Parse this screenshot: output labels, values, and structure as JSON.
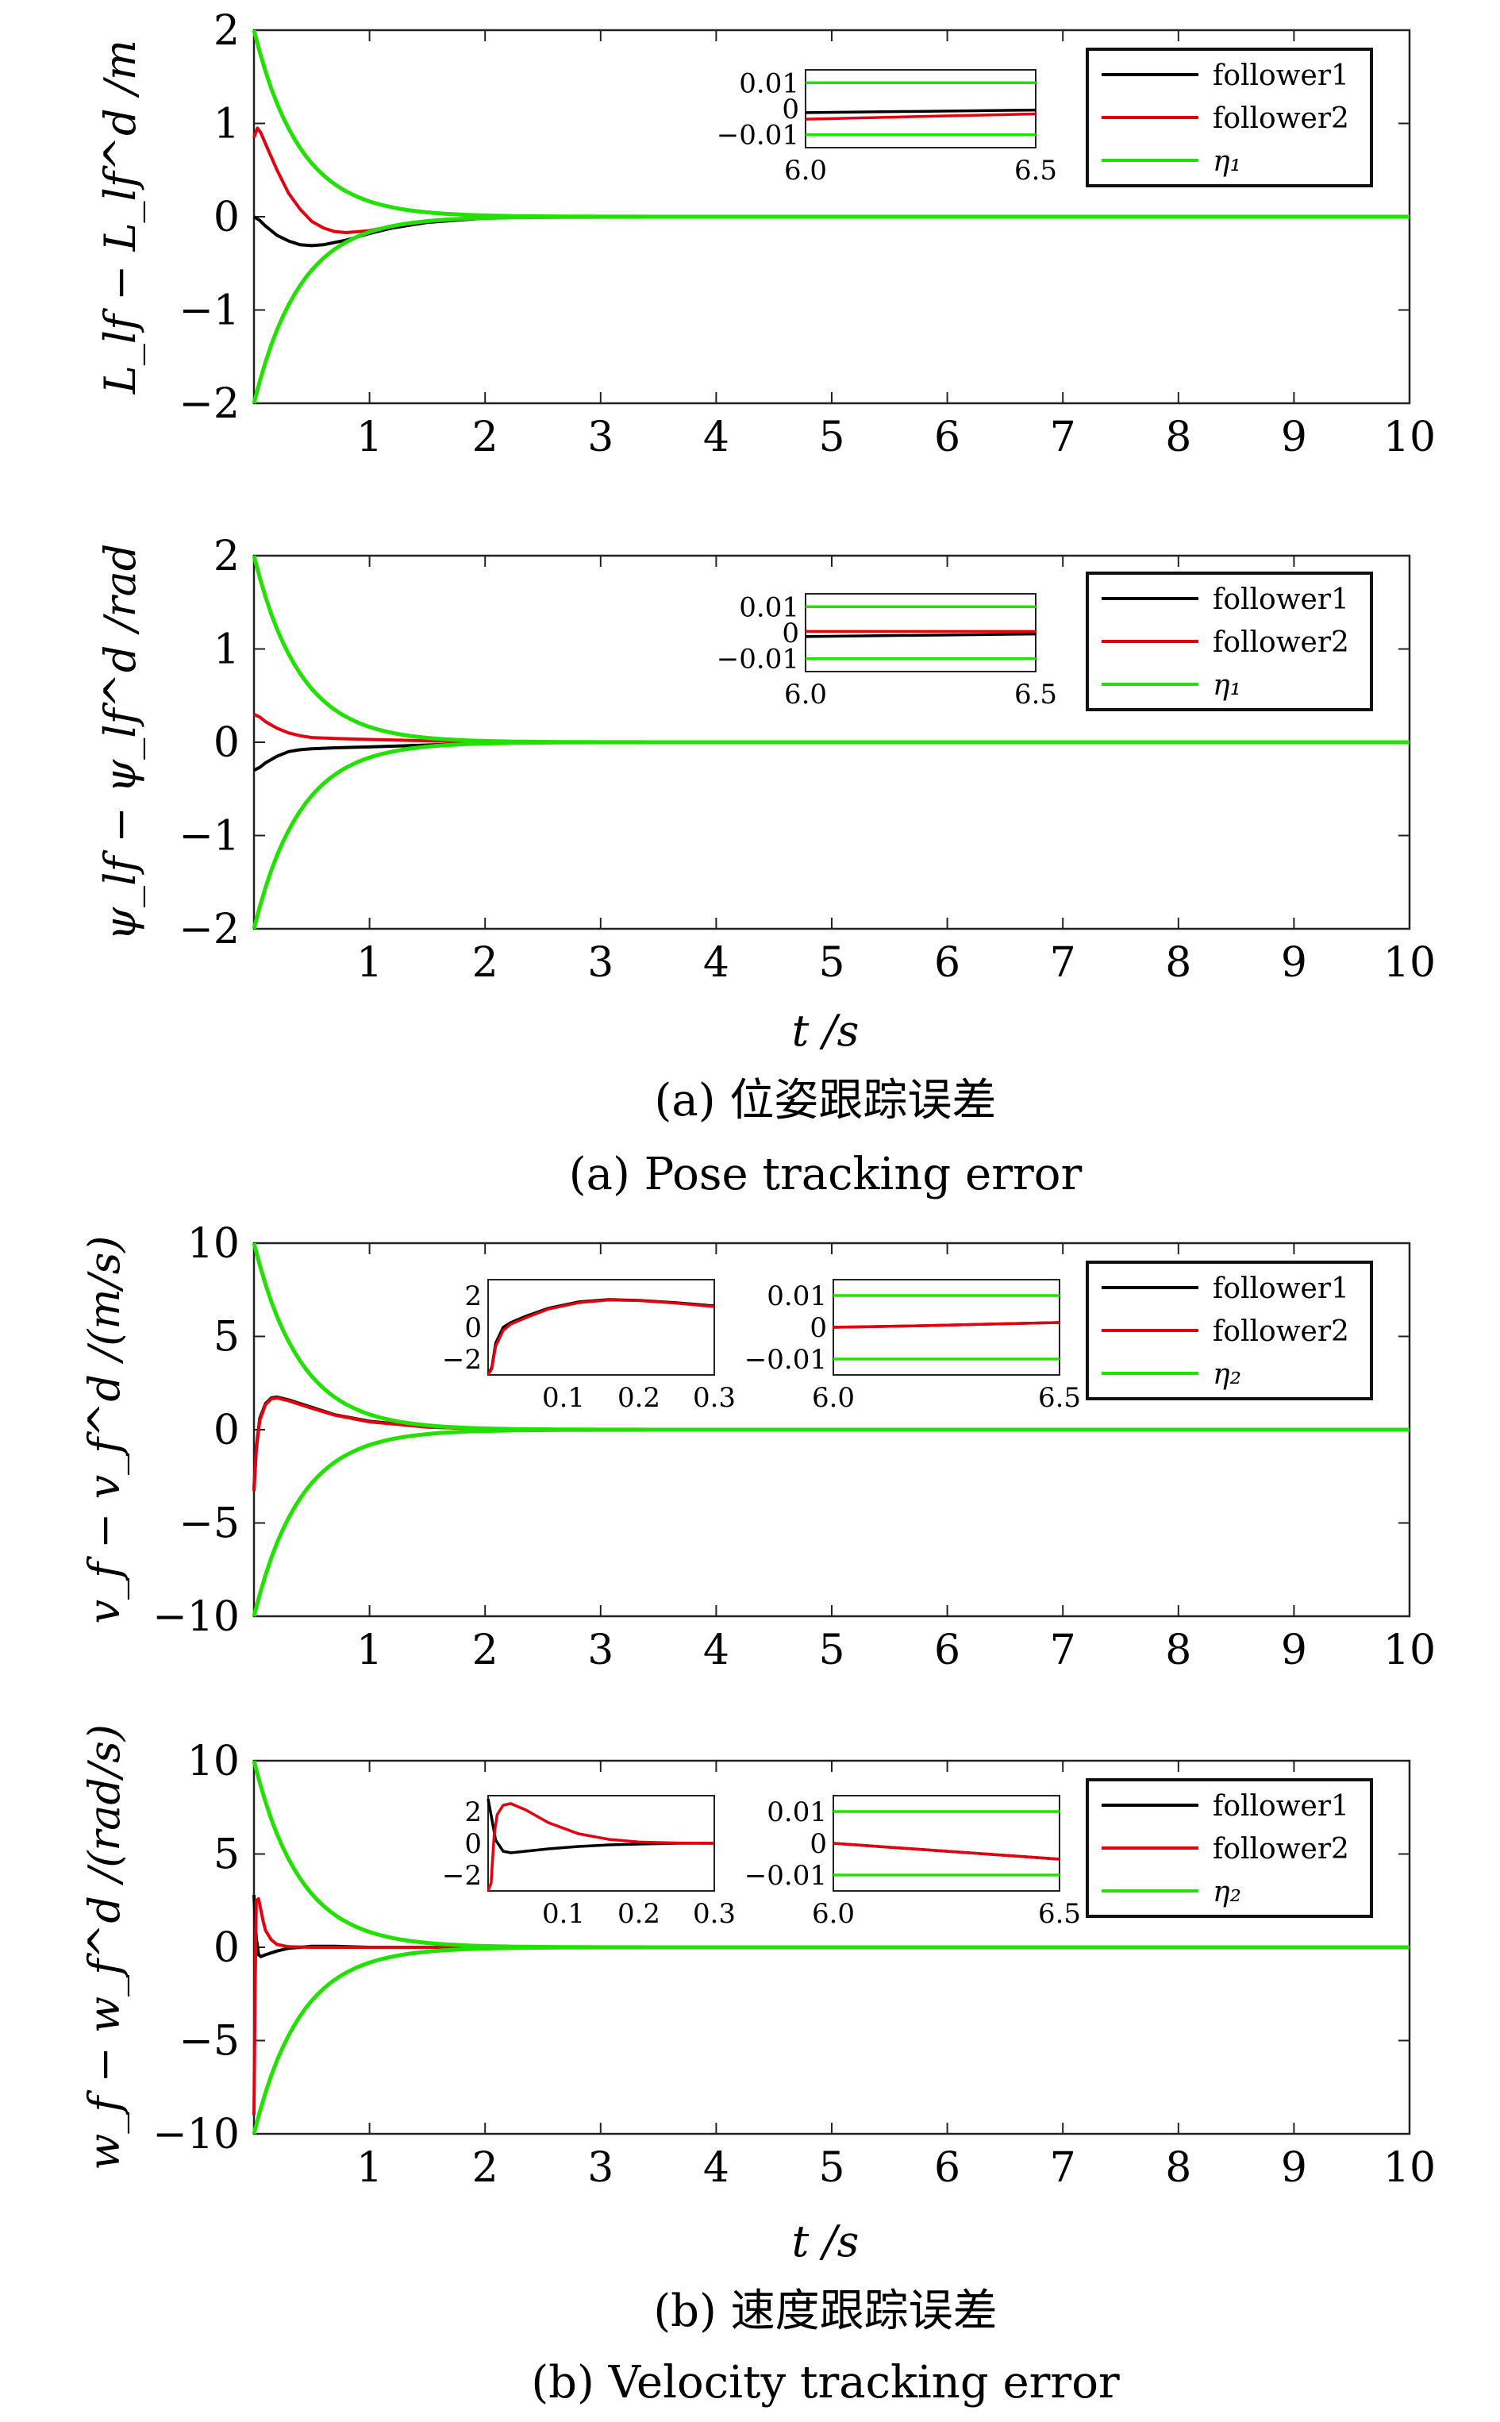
{
  "colors": {
    "follower1": "#000000",
    "follower2": "#e3000f",
    "envelope": "#22e000"
  },
  "chart_data": [
    {
      "id": "L",
      "type": "line",
      "ylabel": "L_lf − L_lf^d /m",
      "xlim": [
        0,
        10
      ],
      "ylim": [
        -2,
        2
      ],
      "xticks": [
        1,
        2,
        3,
        4,
        5,
        6,
        7,
        8,
        9,
        10
      ],
      "yticks": [
        -2,
        -1,
        0,
        1,
        2
      ],
      "legend": [
        "follower1",
        "follower2",
        "η₁"
      ],
      "series": [
        {
          "name": "follower1",
          "x": [
            0,
            0.05,
            0.1,
            0.2,
            0.3,
            0.4,
            0.5,
            0.6,
            0.8,
            1.0,
            1.2,
            1.5,
            2.0,
            2.5,
            3,
            10
          ],
          "y": [
            0,
            -0.04,
            -0.1,
            -0.2,
            -0.26,
            -0.3,
            -0.31,
            -0.3,
            -0.25,
            -0.18,
            -0.12,
            -0.06,
            -0.015,
            0,
            0,
            0
          ]
        },
        {
          "name": "follower2",
          "x": [
            0,
            0.03,
            0.06,
            0.1,
            0.2,
            0.3,
            0.4,
            0.5,
            0.6,
            0.7,
            0.8,
            1.0,
            1.2,
            1.5,
            2.0,
            2.5,
            3,
            10
          ],
          "y": [
            0.85,
            0.95,
            0.9,
            0.78,
            0.5,
            0.25,
            0.08,
            -0.05,
            -0.12,
            -0.16,
            -0.17,
            -0.15,
            -0.1,
            -0.05,
            -0.01,
            0,
            0,
            0
          ]
        },
        {
          "name": "η₁",
          "envelope": true,
          "a": 2,
          "k": 2.5
        }
      ],
      "insets": [
        {
          "xlim": [
            6.0,
            6.5
          ],
          "ylim": [
            -0.015,
            0.015
          ],
          "xticks": [
            "6.0",
            "6.5"
          ],
          "yticks": [
            "0.01",
            "0",
            "−0.01"
          ],
          "series": [
            {
              "name": "follower1",
              "x": [
                6.0,
                6.5
              ],
              "y": [
                -0.0015,
                -0.0005
              ]
            },
            {
              "name": "follower2",
              "x": [
                6.0,
                6.5
              ],
              "y": [
                -0.004,
                -0.002
              ]
            },
            {
              "name": "η₁ upper",
              "x": [
                6.0,
                6.5
              ],
              "y": [
                0.01,
                0.01
              ]
            },
            {
              "name": "η₁ lower",
              "x": [
                6.0,
                6.5
              ],
              "y": [
                -0.01,
                -0.01
              ]
            }
          ]
        }
      ]
    },
    {
      "id": "psi",
      "type": "line",
      "ylabel": "ψ_lf − ψ_lf^d /rad",
      "xlabel": "t /s",
      "xlim": [
        0,
        10
      ],
      "ylim": [
        -2,
        2
      ],
      "xticks": [
        1,
        2,
        3,
        4,
        5,
        6,
        7,
        8,
        9,
        10
      ],
      "yticks": [
        -2,
        -1,
        0,
        1,
        2
      ],
      "legend": [
        "follower1",
        "follower2",
        "η₁"
      ],
      "series": [
        {
          "name": "follower1",
          "x": [
            0,
            0.05,
            0.1,
            0.2,
            0.3,
            0.4,
            0.5,
            0.7,
            1.0,
            1.5,
            2.0,
            2.5,
            10
          ],
          "y": [
            -0.3,
            -0.27,
            -0.22,
            -0.15,
            -0.1,
            -0.08,
            -0.07,
            -0.06,
            -0.05,
            -0.03,
            -0.01,
            0,
            0
          ]
        },
        {
          "name": "follower2",
          "x": [
            0,
            0.05,
            0.1,
            0.2,
            0.3,
            0.4,
            0.5,
            0.7,
            1.0,
            1.5,
            2.0,
            2.5,
            10
          ],
          "y": [
            0.3,
            0.27,
            0.22,
            0.15,
            0.1,
            0.07,
            0.05,
            0.04,
            0.03,
            0.015,
            0.005,
            0,
            0
          ]
        },
        {
          "name": "η₁",
          "envelope": true,
          "a": 2,
          "k": 2.5
        }
      ],
      "insets": [
        {
          "xlim": [
            6.0,
            6.5
          ],
          "ylim": [
            -0.015,
            0.015
          ],
          "xticks": [
            "6.0",
            "6.5"
          ],
          "yticks": [
            "0.01",
            "0",
            "−0.01"
          ],
          "series": [
            {
              "name": "follower1",
              "x": [
                6.0,
                6.5
              ],
              "y": [
                -0.0015,
                -0.0005
              ]
            },
            {
              "name": "follower2",
              "x": [
                6.0,
                6.5
              ],
              "y": [
                0.0005,
                0.0005
              ]
            },
            {
              "name": "η₁ upper",
              "x": [
                6.0,
                6.5
              ],
              "y": [
                0.01,
                0.01
              ]
            },
            {
              "name": "η₁ lower",
              "x": [
                6.0,
                6.5
              ],
              "y": [
                -0.01,
                -0.01
              ]
            }
          ]
        }
      ]
    },
    {
      "id": "v",
      "type": "line",
      "ylabel": "v_f − v_f^d /(m/s)",
      "xlim": [
        0,
        10
      ],
      "ylim": [
        -10,
        10
      ],
      "xticks": [
        1,
        2,
        3,
        4,
        5,
        6,
        7,
        8,
        9,
        10
      ],
      "yticks": [
        -10,
        -5,
        0,
        5,
        10
      ],
      "legend": [
        "follower1",
        "follower2",
        "η₂"
      ],
      "series": [
        {
          "name": "follower1",
          "x": [
            0,
            0.02,
            0.05,
            0.1,
            0.15,
            0.2,
            0.3,
            0.5,
            0.7,
            1.0,
            1.5,
            2.0,
            2.5,
            3,
            10
          ],
          "y": [
            -3.2,
            -1,
            0.6,
            1.4,
            1.7,
            1.75,
            1.6,
            1.2,
            0.8,
            0.45,
            0.15,
            0.04,
            0,
            0,
            0
          ]
        },
        {
          "name": "follower2",
          "x": [
            0,
            0.02,
            0.05,
            0.1,
            0.15,
            0.2,
            0.3,
            0.5,
            0.7,
            1.0,
            1.5,
            2.0,
            2.5,
            3,
            10
          ],
          "y": [
            -3.3,
            -1.1,
            0.5,
            1.35,
            1.65,
            1.7,
            1.55,
            1.15,
            0.78,
            0.42,
            0.14,
            0.04,
            0,
            0,
            0
          ]
        },
        {
          "name": "η₂",
          "envelope": true,
          "a": 10,
          "k": 2.5
        }
      ],
      "insets": [
        {
          "xlim": [
            0.0,
            0.3
          ],
          "ylim": [
            -3,
            3
          ],
          "xticks": [
            "0.1",
            "0.2",
            "0.3"
          ],
          "xtickvals": [
            0.1,
            0.2,
            0.3
          ],
          "yticks": [
            "2",
            "0",
            "−2"
          ],
          "ytickvals": [
            2,
            0,
            -2
          ],
          "series": [
            {
              "name": "follower1",
              "x": [
                0,
                0.005,
                0.01,
                0.02,
                0.03,
                0.05,
                0.08,
                0.12,
                0.16,
                0.2,
                0.25,
                0.3
              ],
              "y": [
                -3,
                -2.5,
                -1,
                0,
                0.3,
                0.7,
                1.2,
                1.6,
                1.75,
                1.7,
                1.55,
                1.35
              ]
            },
            {
              "name": "follower2",
              "x": [
                0,
                0.005,
                0.01,
                0.02,
                0.03,
                0.05,
                0.08,
                0.12,
                0.16,
                0.2,
                0.25,
                0.3
              ],
              "y": [
                -3,
                -2.6,
                -1.2,
                -0.2,
                0.2,
                0.6,
                1.15,
                1.55,
                1.72,
                1.68,
                1.52,
                1.3
              ]
            }
          ]
        },
        {
          "xlim": [
            6.0,
            6.5
          ],
          "ylim": [
            -0.015,
            0.015
          ],
          "xticks": [
            "6.0",
            "6.5"
          ],
          "yticks": [
            "0.01",
            "0",
            "−0.01"
          ],
          "series": [
            {
              "name": "follower1",
              "x": [
                6.0,
                6.2,
                6.4,
                6.5
              ],
              "y": [
                0,
                0.0005,
                0.0012,
                0.0015
              ]
            },
            {
              "name": "follower2",
              "x": [
                6.0,
                6.2,
                6.4,
                6.5
              ],
              "y": [
                0,
                0.0005,
                0.0012,
                0.0015
              ]
            },
            {
              "name": "η₂ upper",
              "x": [
                6.0,
                6.5
              ],
              "y": [
                0.01,
                0.01
              ]
            },
            {
              "name": "η₂ lower",
              "x": [
                6.0,
                6.5
              ],
              "y": [
                -0.01,
                -0.01
              ]
            }
          ]
        }
      ]
    },
    {
      "id": "w",
      "type": "line",
      "ylabel": "w_f − w_f^d /(rad/s)",
      "xlabel": "t /s",
      "xlim": [
        0,
        10
      ],
      "ylim": [
        -10,
        10
      ],
      "xticks": [
        1,
        2,
        3,
        4,
        5,
        6,
        7,
        8,
        9,
        10
      ],
      "yticks": [
        -10,
        -5,
        0,
        5,
        10
      ],
      "legend": [
        "follower1",
        "follower2",
        "η₂"
      ],
      "series": [
        {
          "name": "follower1",
          "x": [
            0,
            0.02,
            0.04,
            0.06,
            0.1,
            0.2,
            0.3,
            0.5,
            0.7,
            1.0,
            1.5,
            10
          ],
          "y": [
            2.8,
            0.5,
            -0.4,
            -0.5,
            -0.4,
            -0.2,
            -0.05,
            0.05,
            0.05,
            0,
            0,
            0
          ]
        },
        {
          "name": "follower2",
          "x": [
            0,
            0.01,
            0.02,
            0.04,
            0.06,
            0.08,
            0.1,
            0.15,
            0.2,
            0.3,
            0.5,
            0.7,
            1.0,
            10
          ],
          "y": [
            -9,
            -2,
            2.5,
            2.6,
            2.0,
            1.4,
            0.9,
            0.4,
            0.15,
            0.03,
            0,
            0,
            0,
            0
          ]
        },
        {
          "name": "η₂",
          "envelope": true,
          "a": 10,
          "k": 2.5
        }
      ],
      "insets": [
        {
          "xlim": [
            0.0,
            0.3
          ],
          "ylim": [
            -3,
            3
          ],
          "xticks": [
            "0.1",
            "0.2",
            "0.3"
          ],
          "xtickvals": [
            0.1,
            0.2,
            0.3
          ],
          "yticks": [
            "2",
            "0",
            "−2"
          ],
          "ytickvals": [
            2,
            0,
            -2
          ],
          "series": [
            {
              "name": "follower1",
              "x": [
                0,
                0.005,
                0.01,
                0.02,
                0.03,
                0.05,
                0.08,
                0.12,
                0.16,
                0.2,
                0.25,
                0.3
              ],
              "y": [
                2.8,
                1.5,
                0.2,
                -0.5,
                -0.6,
                -0.5,
                -0.35,
                -0.2,
                -0.1,
                -0.05,
                0,
                0
              ]
            },
            {
              "name": "follower2",
              "x": [
                0,
                0.004,
                0.008,
                0.012,
                0.02,
                0.03,
                0.05,
                0.08,
                0.12,
                0.16,
                0.2,
                0.25,
                0.3
              ],
              "y": [
                -3,
                -2.5,
                0.5,
                1.8,
                2.4,
                2.5,
                2.1,
                1.3,
                0.6,
                0.25,
                0.08,
                0.02,
                0
              ]
            }
          ]
        },
        {
          "xlim": [
            6.0,
            6.5
          ],
          "ylim": [
            -0.015,
            0.015
          ],
          "xticks": [
            "6.0",
            "6.5"
          ],
          "yticks": [
            "0.01",
            "0",
            "−0.01"
          ],
          "series": [
            {
              "name": "follower1",
              "x": [
                6.0,
                6.2,
                6.4,
                6.5
              ],
              "y": [
                0,
                -0.002,
                -0.004,
                -0.005
              ]
            },
            {
              "name": "follower2",
              "x": [
                6.0,
                6.2,
                6.4,
                6.5
              ],
              "y": [
                0,
                -0.002,
                -0.004,
                -0.005
              ]
            },
            {
              "name": "η₂ upper",
              "x": [
                6.0,
                6.5
              ],
              "y": [
                0.01,
                0.01
              ]
            },
            {
              "name": "η₂ lower",
              "x": [
                6.0,
                6.5
              ],
              "y": [
                -0.01,
                -0.01
              ]
            }
          ]
        }
      ]
    }
  ],
  "captions": {
    "a_cn": "(a) 位姿跟踪误差",
    "a_en": "(a) Pose tracking error",
    "b_cn": "(b) 速度跟踪误差",
    "b_en": "(b) Velocity tracking error"
  }
}
